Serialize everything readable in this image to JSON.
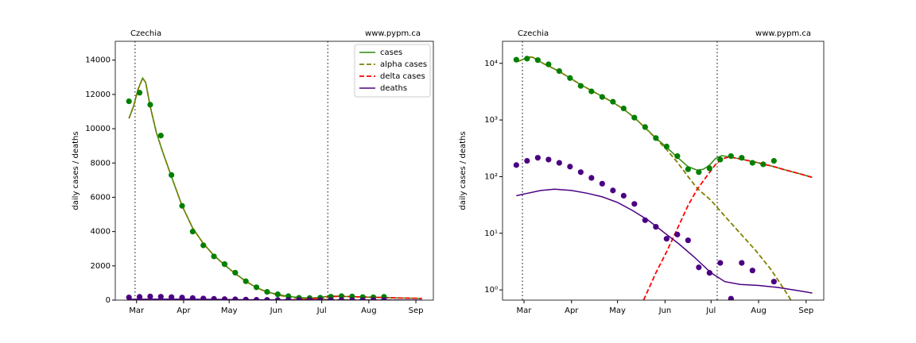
{
  "chart_data": [
    {
      "type": "line",
      "title": "Czechia",
      "source": "www.pypm.ca",
      "ylabel": "daily cases / deaths",
      "xlim": [
        45,
        254.5
      ],
      "ylim": [
        0,
        15100
      ],
      "log": false,
      "legend": "upper right",
      "xticks": [
        {
          "value": 59,
          "label": "Mar"
        },
        {
          "value": 90,
          "label": "Apr"
        },
        {
          "value": 120,
          "label": "May"
        },
        {
          "value": 151,
          "label": "Jun"
        },
        {
          "value": 181,
          "label": "Jul"
        },
        {
          "value": 212,
          "label": "Aug"
        },
        {
          "value": 243,
          "label": "Sep"
        }
      ],
      "yticks": [
        0,
        2000,
        4000,
        6000,
        8000,
        10000,
        12000,
        14000
      ],
      "vlines": [
        58,
        185
      ],
      "series": [
        {
          "name": "cases",
          "color": "#2f8a11",
          "style": "solid",
          "x": [
            54,
            57,
            60,
            63,
            65,
            68,
            72,
            76,
            82,
            89,
            96,
            103,
            110,
            117,
            124,
            131,
            138,
            145,
            152,
            159,
            166,
            172,
            176,
            180,
            184,
            188,
            192,
            200,
            210,
            220,
            230,
            240,
            247
          ],
          "values": [
            10600,
            11300,
            12300,
            12950,
            12700,
            11300,
            9800,
            8700,
            7200,
            5500,
            4200,
            3300,
            2600,
            2050,
            1550,
            1100,
            730,
            480,
            330,
            220,
            150,
            130,
            135,
            160,
            210,
            235,
            225,
            205,
            180,
            155,
            130,
            110,
            97
          ]
        },
        {
          "name": "alpha cases",
          "color": "#808000",
          "style": "dashed",
          "x": [
            54,
            57,
            60,
            63,
            65,
            68,
            72,
            76,
            82,
            89,
            96,
            103,
            110,
            117,
            124,
            131,
            138,
            145,
            152,
            159,
            166,
            172,
            181,
            190,
            200,
            210,
            220,
            230,
            234
          ],
          "values": [
            10600,
            11300,
            12300,
            12950,
            12700,
            11300,
            9800,
            8700,
            7200,
            5500,
            4200,
            3300,
            2600,
            2050,
            1550,
            1100,
            730,
            470,
            300,
            180,
            100,
            62,
            38,
            20,
            10,
            5,
            2.3,
            0.9,
            0.6
          ]
        },
        {
          "name": "delta cases",
          "color": "#ff0000",
          "style": "dashed",
          "x": [
            137,
            140,
            145,
            152,
            159,
            166,
            172,
            178,
            184,
            188,
            192,
            196,
            200,
            210,
            220,
            230,
            240,
            247
          ],
          "values": [
            0.66,
            1.0,
            2.0,
            4.7,
            12,
            31,
            60,
            100,
            165,
            205,
            220,
            215,
            205,
            180,
            155,
            130,
            110,
            97
          ]
        },
        {
          "name": "deaths",
          "color": "#4b0082",
          "style": "solid",
          "x": [
            54,
            60,
            70,
            79,
            90,
            100,
            110,
            120,
            130,
            140,
            151,
            160,
            170,
            181,
            190,
            200,
            212,
            225,
            240,
            247
          ],
          "values": [
            46,
            50,
            57,
            60,
            57,
            51,
            44,
            35,
            25,
            17,
            10,
            6.5,
            3.8,
            2.0,
            1.4,
            1.25,
            1.2,
            1.1,
            0.95,
            0.88
          ]
        },
        {
          "color": "#008000",
          "style": "dots",
          "x": [
            54,
            61,
            68,
            75,
            82,
            89,
            96,
            103,
            110,
            117,
            124,
            131,
            138,
            145,
            152,
            159,
            166,
            173,
            180,
            187,
            194,
            201,
            208,
            215,
            222
          ],
          "values": [
            11600,
            12100,
            11400,
            9600,
            7300,
            5500,
            4000,
            3200,
            2550,
            2100,
            1600,
            1100,
            750,
            480,
            340,
            230,
            135,
            120,
            140,
            200,
            230,
            215,
            175,
            165,
            190
          ]
        },
        {
          "color": "#4b0082",
          "style": "dots",
          "x": [
            54,
            61,
            68,
            75,
            82,
            89,
            96,
            103,
            110,
            117,
            124,
            131,
            138,
            145,
            152,
            159,
            166,
            173,
            180,
            187,
            194,
            201,
            208,
            215,
            222
          ],
          "values": [
            160,
            190,
            215,
            200,
            175,
            150,
            120,
            95,
            75,
            57,
            46,
            33,
            17,
            13,
            8,
            9.5,
            7.5,
            2.5,
            2.0,
            3.0,
            0.7,
            3.0,
            2.2,
            0,
            1.4
          ]
        }
      ]
    },
    {
      "type": "line",
      "title": "Czechia",
      "source": "www.pypm.ca",
      "ylabel": "daily cases / deaths",
      "xlim": [
        45,
        254.5
      ],
      "ylim": [
        0.66,
        24500
      ],
      "log": true,
      "xticks": [
        {
          "value": 59,
          "label": "Mar"
        },
        {
          "value": 90,
          "label": "Apr"
        },
        {
          "value": 120,
          "label": "May"
        },
        {
          "value": 151,
          "label": "Jun"
        },
        {
          "value": 181,
          "label": "Jul"
        },
        {
          "value": 212,
          "label": "Aug"
        },
        {
          "value": 243,
          "label": "Sep"
        }
      ],
      "yticks": [
        {
          "value": 1,
          "label": "10⁰"
        },
        {
          "value": 10,
          "label": "10¹"
        },
        {
          "value": 100,
          "label": "10²"
        },
        {
          "value": 1000,
          "label": "10³"
        },
        {
          "value": 10000,
          "label": "10⁴"
        }
      ],
      "vlines": [
        58,
        185
      ],
      "series": [
        {
          "color": "#2f8a11",
          "style": "solid",
          "x": [
            54,
            57,
            60,
            63,
            65,
            68,
            72,
            76,
            82,
            89,
            96,
            103,
            110,
            117,
            124,
            131,
            138,
            145,
            152,
            159,
            166,
            172,
            176,
            180,
            184,
            188,
            192,
            200,
            210,
            220,
            230,
            240,
            247
          ],
          "values": [
            10600,
            11300,
            12300,
            12950,
            12700,
            11300,
            9800,
            8700,
            7200,
            5500,
            4200,
            3300,
            2600,
            2050,
            1550,
            1100,
            730,
            480,
            330,
            220,
            150,
            130,
            135,
            160,
            210,
            235,
            225,
            205,
            180,
            155,
            130,
            110,
            97
          ]
        },
        {
          "color": "#808000",
          "style": "dashed",
          "x": [
            54,
            57,
            60,
            63,
            65,
            68,
            72,
            76,
            82,
            89,
            96,
            103,
            110,
            117,
            124,
            131,
            138,
            145,
            152,
            159,
            166,
            172,
            181,
            190,
            200,
            210,
            220,
            230,
            234
          ],
          "values": [
            10600,
            11300,
            12300,
            12950,
            12700,
            11300,
            9800,
            8700,
            7200,
            5500,
            4200,
            3300,
            2600,
            2050,
            1550,
            1100,
            730,
            470,
            300,
            180,
            100,
            62,
            38,
            20,
            10,
            5,
            2.3,
            0.9,
            0.6
          ]
        },
        {
          "color": "#ff0000",
          "style": "dashed",
          "x": [
            137,
            140,
            145,
            152,
            159,
            166,
            172,
            178,
            184,
            188,
            192,
            196,
            200,
            210,
            220,
            230,
            240,
            247
          ],
          "values": [
            0.66,
            1.0,
            2.0,
            4.7,
            12,
            31,
            60,
            100,
            165,
            205,
            220,
            215,
            205,
            180,
            155,
            130,
            110,
            97
          ]
        },
        {
          "color": "#4b0082",
          "style": "solid",
          "x": [
            54,
            60,
            70,
            79,
            90,
            100,
            110,
            120,
            130,
            140,
            151,
            160,
            170,
            181,
            190,
            200,
            212,
            225,
            240,
            247
          ],
          "values": [
            46,
            50,
            57,
            60,
            57,
            51,
            44,
            35,
            25,
            17,
            10,
            6.5,
            3.8,
            2.0,
            1.4,
            1.25,
            1.2,
            1.1,
            0.95,
            0.88
          ]
        },
        {
          "color": "#008000",
          "style": "dots",
          "x": [
            54,
            61,
            68,
            75,
            82,
            89,
            96,
            103,
            110,
            117,
            124,
            131,
            138,
            145,
            152,
            159,
            166,
            173,
            180,
            187,
            194,
            201,
            208,
            215,
            222
          ],
          "values": [
            11600,
            12100,
            11400,
            9600,
            7300,
            5500,
            4000,
            3200,
            2550,
            2100,
            1600,
            1100,
            750,
            480,
            340,
            230,
            135,
            120,
            140,
            200,
            230,
            215,
            175,
            165,
            190
          ]
        },
        {
          "color": "#4b0082",
          "style": "dots",
          "x": [
            54,
            61,
            68,
            75,
            82,
            89,
            96,
            103,
            110,
            117,
            124,
            131,
            138,
            145,
            152,
            159,
            166,
            173,
            180,
            187,
            194,
            201,
            208,
            215,
            222
          ],
          "values": [
            160,
            190,
            215,
            200,
            175,
            150,
            120,
            95,
            75,
            57,
            46,
            33,
            17,
            13,
            8,
            9.5,
            7.5,
            2.5,
            2.0,
            3.0,
            0.7,
            3.0,
            2.2,
            0,
            1.4
          ]
        }
      ]
    }
  ]
}
